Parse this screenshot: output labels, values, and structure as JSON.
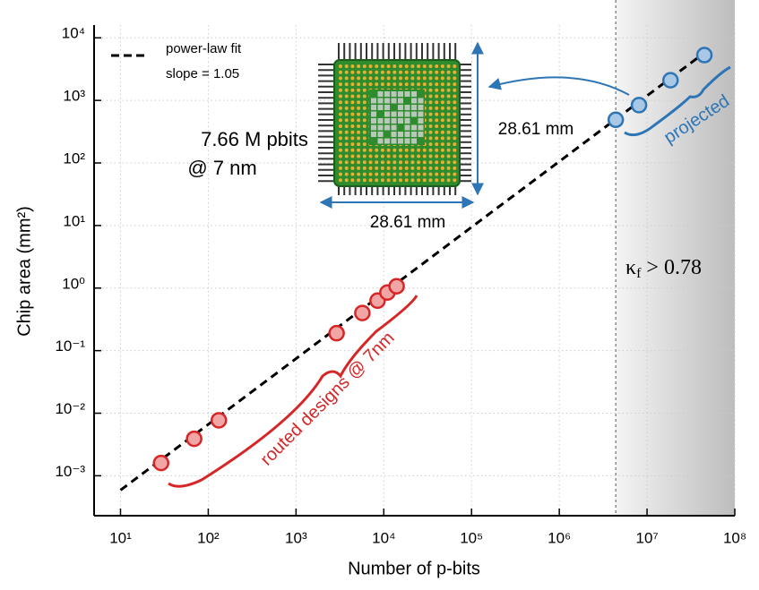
{
  "chart_data": {
    "type": "scatter",
    "x_label": "Number of p-bits",
    "y_label": "Chip area (mm²)",
    "log_x": true,
    "log_y": true,
    "grid": true,
    "xlim": [
      5,
      100000000
    ],
    "ylim": [
      0.00023,
      16000
    ],
    "xticks": [
      {
        "value": 10,
        "label": "10¹"
      },
      {
        "value": 100,
        "label": "10²"
      },
      {
        "value": 1000,
        "label": "10³"
      },
      {
        "value": 10000,
        "label": "10⁴"
      },
      {
        "value": 100000,
        "label": "10⁵"
      },
      {
        "value": 1000000,
        "label": "10⁶"
      },
      {
        "value": 10000000,
        "label": "10⁷"
      },
      {
        "value": 100000000,
        "label": "10⁸"
      }
    ],
    "yticks": [
      {
        "value": 0.001,
        "label": "10⁻³"
      },
      {
        "value": 0.01,
        "label": "10⁻²"
      },
      {
        "value": 0.1,
        "label": "10⁻¹"
      },
      {
        "value": 1,
        "label": "10⁰"
      },
      {
        "value": 10,
        "label": "10¹"
      },
      {
        "value": 100,
        "label": "10²"
      },
      {
        "value": 1000,
        "label": "10³"
      },
      {
        "value": 10000,
        "label": "10⁴"
      }
    ],
    "series": [
      {
        "name": "routed designs @ 7nm",
        "color": "#d62728",
        "fill": "#f2a5a5",
        "x": [
          29,
          69,
          132,
          2900,
          5700,
          8500,
          11000,
          14000
        ],
        "values": [
          0.0016,
          0.0039,
          0.0077,
          0.19,
          0.4,
          0.63,
          0.85,
          1.07
        ]
      },
      {
        "name": "projected",
        "color": "#2e75b6",
        "fill": "#a9c8e6",
        "x": [
          4400000,
          8100000,
          18500000,
          45000000
        ],
        "values": [
          490,
          840,
          2100,
          5300
        ]
      }
    ],
    "fit": {
      "name": "power-law fit",
      "slope_label": "slope = 1.05",
      "color": "#000",
      "x": [
        10,
        46000000
      ],
      "values": [
        0.00059,
        5900
      ]
    },
    "threshold_x": 4400000,
    "threshold_label": {
      "symbol": "κ",
      "subscript": "f",
      "text": " > 0.78"
    },
    "chip_label": [
      "7.66 M pbits",
      "@ 7 nm"
    ],
    "chip_width_label": "28.61 mm",
    "chip_height_label": "28.61 mm"
  }
}
